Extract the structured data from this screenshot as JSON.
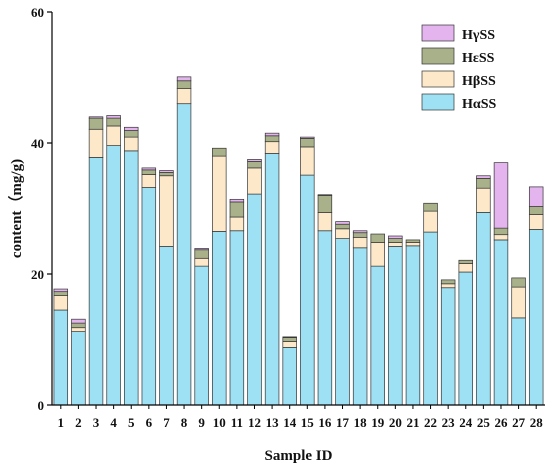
{
  "chart_data": {
    "type": "bar",
    "stacked": true,
    "xlabel": "Sample ID",
    "ylabel": "content（mg/g)",
    "ylim": [
      0,
      60
    ],
    "yticks": [
      0,
      20,
      40,
      60
    ],
    "grid": false,
    "legend_position": "top-right",
    "categories": [
      "1",
      "2",
      "3",
      "4",
      "5",
      "6",
      "7",
      "8",
      "9",
      "10",
      "11",
      "12",
      "13",
      "14",
      "15",
      "16",
      "17",
      "18",
      "19",
      "20",
      "21",
      "22",
      "23",
      "24",
      "25",
      "26",
      "27",
      "28"
    ],
    "series": [
      {
        "name": "HαSS",
        "color": "#9fe1f4",
        "values": [
          14.5,
          11.2,
          37.8,
          39.6,
          38.8,
          33.2,
          24.2,
          46.0,
          21.2,
          26.5,
          26.6,
          32.2,
          38.4,
          8.8,
          35.1,
          26.6,
          25.4,
          24.0,
          21.2,
          24.2,
          24.3,
          26.4,
          17.9,
          20.3,
          29.4,
          25.2,
          13.3,
          26.8
        ]
      },
      {
        "name": "HβSS",
        "color": "#fde9c9",
        "values": [
          2.2,
          0.6,
          4.3,
          3.0,
          2.1,
          2.0,
          10.8,
          2.3,
          1.2,
          11.5,
          2.1,
          4.0,
          1.8,
          0.9,
          4.3,
          2.8,
          1.5,
          1.6,
          3.6,
          0.6,
          0.5,
          3.2,
          0.6,
          1.3,
          3.7,
          0.8,
          4.7,
          2.3
        ]
      },
      {
        "name": "HεSS",
        "color": "#a9b18a",
        "values": [
          0.6,
          0.7,
          1.7,
          1.2,
          1.0,
          0.7,
          0.5,
          1.2,
          1.3,
          1.2,
          2.3,
          1.0,
          0.9,
          0.6,
          1.3,
          2.6,
          0.7,
          0.7,
          1.3,
          0.6,
          0.4,
          1.2,
          0.6,
          0.5,
          1.5,
          1.0,
          1.4,
          1.2
        ]
      },
      {
        "name": "HγSS",
        "color": "#e3b4ee",
        "values": [
          0.4,
          0.6,
          0.2,
          0.4,
          0.5,
          0.3,
          0.3,
          0.6,
          0.2,
          0.0,
          0.4,
          0.3,
          0.4,
          0.1,
          0.2,
          0.1,
          0.4,
          0.3,
          0.0,
          0.4,
          0.0,
          0.0,
          0.0,
          0.0,
          0.4,
          10.0,
          0.0,
          3.0
        ]
      }
    ],
    "legend_order": [
      "HγSS",
      "HεSS",
      "HβSS",
      "HαSS"
    ]
  }
}
